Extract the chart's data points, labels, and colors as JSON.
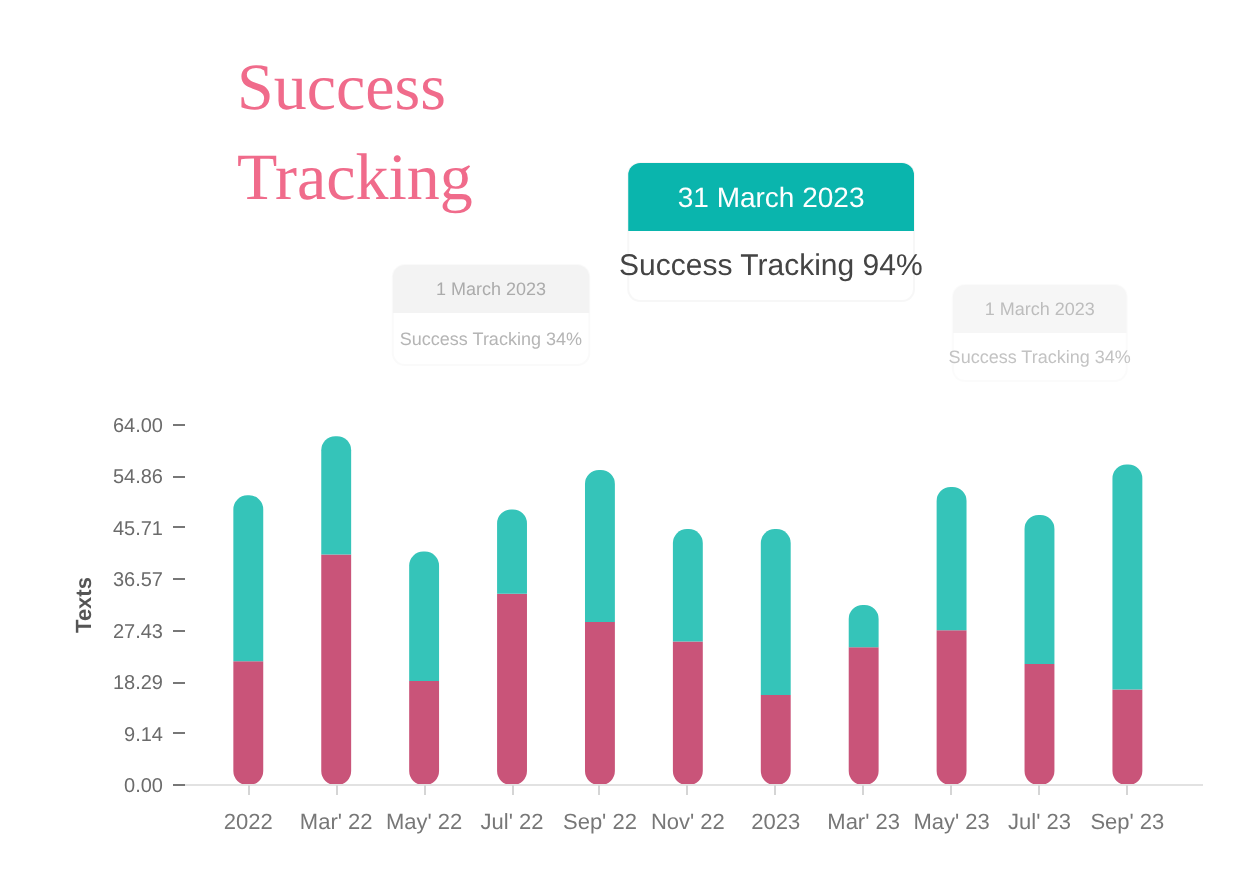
{
  "chart_data": {
    "type": "bar",
    "title": "Success Tracking",
    "ylabel": "Texts",
    "categories": [
      "2022",
      "Mar' 22",
      "May' 22",
      "Jul' 22",
      "Sep' 22",
      "Nov' 22",
      "2023",
      "Mar' 23",
      "May' 23",
      "Jul' 23",
      "Sep' 23"
    ],
    "stacked": true,
    "series": [
      {
        "color": "#c95479",
        "values": [
          22,
          41,
          18.5,
          34,
          29,
          25.5,
          16,
          24.5,
          27.5,
          21.5,
          17
        ]
      },
      {
        "color": "#35c4b9",
        "values": [
          29.5,
          21,
          23,
          15,
          27,
          20,
          29.5,
          7.5,
          25.5,
          26.5,
          40
        ]
      }
    ],
    "ylim": [
      0,
      64
    ],
    "yticks": [
      {
        "value": 0,
        "label": "0.00"
      },
      {
        "value": 9.14,
        "label": "9.14"
      },
      {
        "value": 18.29,
        "label": "18.29"
      },
      {
        "value": 27.43,
        "label": "27.43"
      },
      {
        "value": 36.57,
        "label": "36.57"
      },
      {
        "value": 45.71,
        "label": "45.71"
      },
      {
        "value": 54.86,
        "label": "54.86"
      },
      {
        "value": 64,
        "label": "64.00"
      }
    ],
    "grid": false,
    "annotations": [
      "31 March 2023",
      "Success Tracking 94%",
      "1 March 2023",
      "Success Tracking 34%",
      "1 March 2023",
      "Success Tracking 34%"
    ]
  }
}
